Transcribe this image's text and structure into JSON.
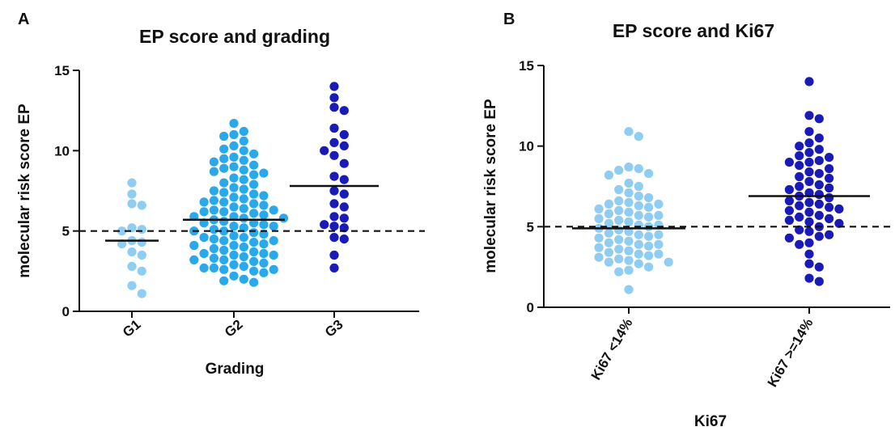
{
  "chart_data": [
    {
      "type": "scatter",
      "panel": "A",
      "title": "EP score and grading",
      "xlabel": "Grading",
      "ylabel": "molecular risk score EP",
      "ylim": [
        0,
        15
      ],
      "yticks": [
        0,
        5,
        10,
        15
      ],
      "reference_line": 5,
      "categories": [
        "G1",
        "G2",
        "G3"
      ],
      "series": [
        {
          "category": "G1",
          "color": "#8fcdf2",
          "median": 4.4,
          "values": [
            8.0,
            7.3,
            6.7,
            6.6,
            5.2,
            5.1,
            5.0,
            4.4,
            4.3,
            4.2,
            3.7,
            3.5,
            2.8,
            2.5,
            1.6,
            1.1
          ]
        },
        {
          "category": "G2",
          "color": "#29a8ea",
          "median": 5.7,
          "values": [
            11.7,
            11.2,
            11.0,
            10.9,
            10.6,
            10.3,
            10.1,
            10.0,
            9.8,
            9.6,
            9.5,
            9.3,
            9.1,
            9.0,
            8.8,
            8.7,
            8.5,
            8.3,
            8.2,
            8.0,
            7.9,
            7.7,
            7.6,
            7.4,
            7.3,
            7.2,
            7.0,
            6.9,
            6.8,
            6.7,
            6.6,
            6.5,
            6.4,
            6.3,
            6.2,
            6.1,
            6.0,
            5.9,
            5.8,
            5.8,
            5.7,
            5.6,
            5.5,
            5.4,
            5.3,
            5.2,
            5.1,
            5.0,
            4.9,
            4.8,
            4.7,
            4.6,
            4.5,
            4.4,
            4.3,
            4.2,
            4.1,
            4.0,
            3.9,
            3.8,
            3.7,
            3.6,
            3.5,
            3.4,
            3.3,
            3.2,
            3.1,
            3.0,
            2.9,
            2.8,
            2.7,
            2.6,
            2.5,
            2.4,
            2.2,
            2.0,
            1.9,
            1.8,
            9.4,
            8.6,
            7.5,
            6.8,
            6.3,
            5.9,
            5.5,
            5.0,
            4.6,
            4.1,
            3.6,
            3.2,
            2.7,
            8.9,
            7.1,
            6.2,
            5.3,
            4.4,
            3.5,
            2.6
          ]
        },
        {
          "category": "G3",
          "color": "#1a1ab8",
          "median": 7.8,
          "values": [
            14.0,
            13.3,
            12.7,
            12.5,
            11.4,
            11.0,
            10.5,
            10.3,
            10.0,
            9.7,
            9.2,
            8.4,
            8.2,
            7.5,
            7.3,
            6.7,
            6.5,
            5.9,
            5.8,
            5.4,
            5.3,
            5.2,
            4.6,
            4.5,
            3.5,
            2.7
          ]
        }
      ]
    },
    {
      "type": "scatter",
      "panel": "B",
      "title": "EP score and  Ki67",
      "xlabel": "Ki67",
      "ylabel": "molecular risk score EP",
      "ylim": [
        0,
        15
      ],
      "yticks": [
        0,
        5,
        10,
        15
      ],
      "reference_line": 5,
      "categories": [
        "Ki67 <14%",
        "Ki67 >=14%"
      ],
      "series": [
        {
          "category": "Ki67 <14%",
          "color": "#8fcdf2",
          "median": 4.9,
          "values": [
            10.9,
            10.6,
            8.7,
            8.6,
            8.5,
            8.3,
            8.2,
            7.7,
            7.5,
            7.3,
            7.1,
            6.9,
            6.8,
            6.6,
            6.5,
            6.4,
            6.3,
            6.2,
            6.1,
            6.0,
            5.9,
            5.8,
            5.7,
            5.6,
            5.5,
            5.4,
            5.3,
            5.2,
            5.1,
            5.0,
            4.9,
            4.8,
            4.7,
            4.6,
            4.5,
            4.4,
            4.3,
            4.2,
            4.1,
            4.0,
            3.9,
            3.8,
            3.7,
            3.6,
            3.5,
            3.4,
            3.3,
            3.2,
            3.1,
            3.0,
            2.9,
            2.8,
            2.7,
            2.5,
            2.3,
            2.2,
            1.1,
            6.4,
            5.7,
            5.1,
            4.5,
            3.9,
            3.3,
            2.8
          ]
        },
        {
          "category": "Ki67 >=14%",
          "color": "#1a1ab8",
          "median": 6.9,
          "values": [
            14.0,
            11.9,
            11.7,
            10.9,
            10.5,
            10.2,
            10.0,
            9.8,
            9.6,
            9.4,
            9.3,
            9.1,
            9.0,
            8.8,
            8.6,
            8.4,
            8.3,
            8.1,
            8.0,
            7.8,
            7.6,
            7.4,
            7.3,
            7.1,
            7.0,
            6.9,
            6.8,
            6.6,
            6.5,
            6.4,
            6.2,
            6.1,
            6.0,
            5.9,
            5.7,
            5.6,
            5.5,
            5.3,
            5.2,
            5.0,
            4.8,
            4.7,
            4.5,
            4.3,
            4.0,
            3.9,
            3.3,
            2.7,
            2.5,
            1.8,
            1.6,
            9.0,
            7.5,
            6.3,
            5.4,
            4.4
          ]
        }
      ]
    }
  ]
}
